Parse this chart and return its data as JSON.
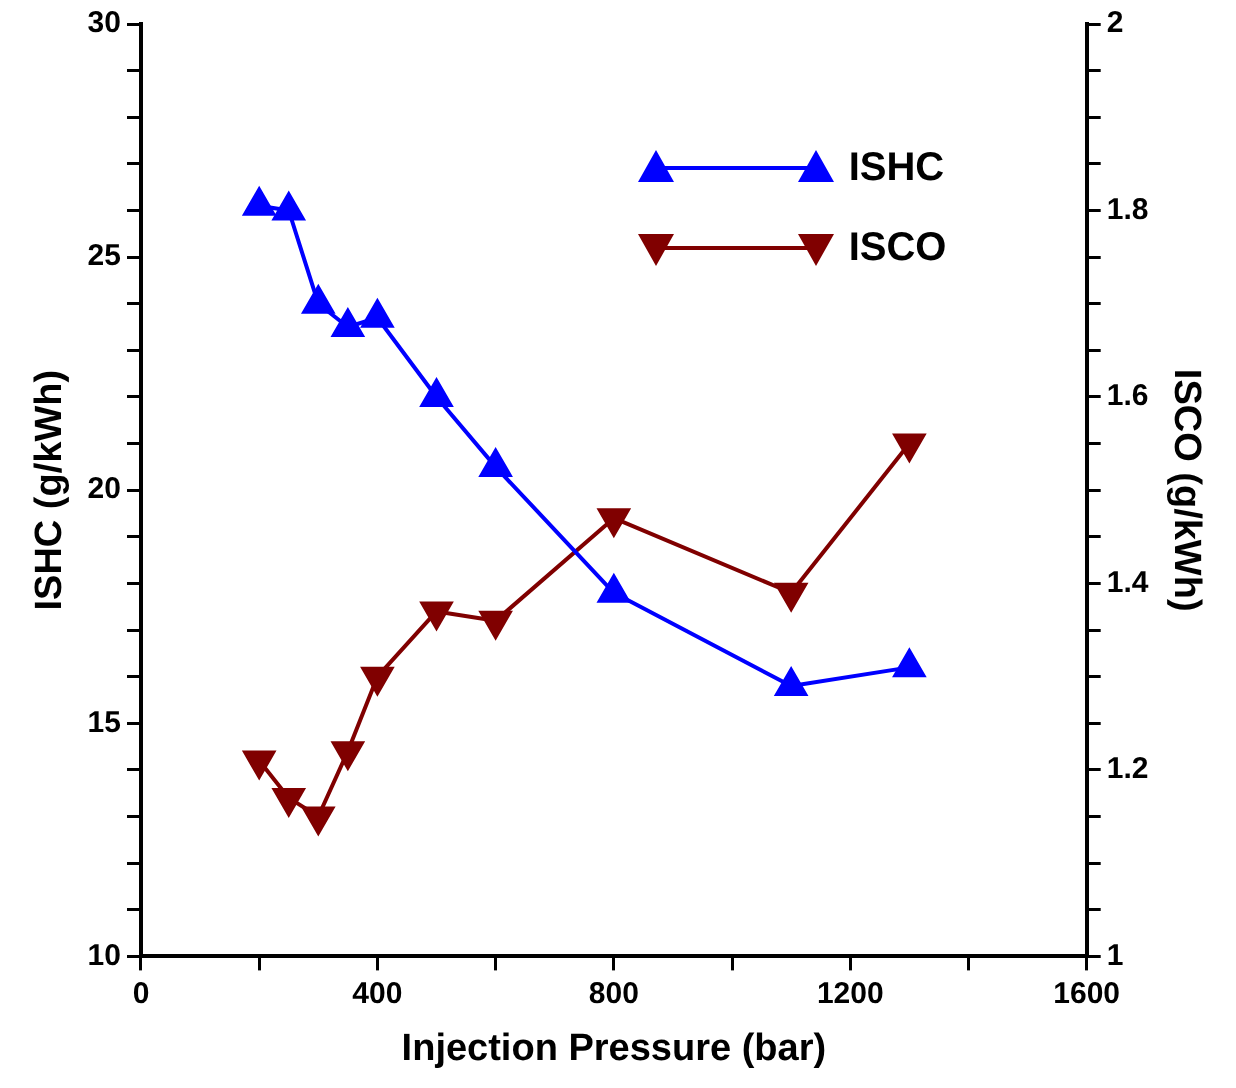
{
  "chart_data": {
    "type": "line",
    "xlabel": "Injection Pressure (bar)",
    "ylabel": "ISHC (g/kWh)",
    "y2label": "ISCO (g/kWh)",
    "x": [
      200,
      250,
      300,
      350,
      400,
      500,
      600,
      800,
      1100,
      1300
    ],
    "series": [
      {
        "name": "ISHC",
        "color": "#0000ff",
        "marker": "triangle",
        "values": [
          26.1,
          26.0,
          24.0,
          23.5,
          23.7,
          22.0,
          20.5,
          17.8,
          15.8,
          16.2
        ]
      },
      {
        "name": "ISCO",
        "color": "#800000",
        "marker": "triangle",
        "axis": "y2",
        "values": [
          1.21,
          1.17,
          1.15,
          1.22,
          1.3,
          1.37,
          1.36,
          1.47,
          1.39,
          1.55
        ]
      }
    ],
    "xlim": [
      0,
      1600
    ],
    "xticks": [
      0,
      {
        "value": 200,
        "label": null
      },
      400,
      {
        "value": 600,
        "label": null
      },
      800,
      {
        "value": 1000,
        "label": null
      },
      1200,
      {
        "value": 1400,
        "label": null
      },
      1600
    ],
    "ylim": [
      10,
      30
    ],
    "yticks": [
      10,
      {
        "value": 11,
        "label": null
      },
      {
        "value": 12,
        "label": null
      },
      {
        "value": 13,
        "label": null
      },
      {
        "value": 14,
        "label": null
      },
      15,
      {
        "value": 16,
        "label": null
      },
      {
        "value": 17,
        "label": null
      },
      {
        "value": 18,
        "label": null
      },
      {
        "value": 19,
        "label": null
      },
      20,
      {
        "value": 21,
        "label": null
      },
      {
        "value": 22,
        "label": null
      },
      {
        "value": 23,
        "label": null
      },
      {
        "value": 24,
        "label": null
      },
      25,
      {
        "value": 26,
        "label": null
      },
      {
        "value": 27,
        "label": null
      },
      {
        "value": 28,
        "label": null
      },
      {
        "value": 29,
        "label": null
      },
      30
    ],
    "y2lim": [
      1,
      2
    ],
    "y2ticks": [
      1,
      {
        "value": 1.05,
        "label": null
      },
      1.2,
      {
        "value": 1.1,
        "label": null
      },
      {
        "value": 1.15,
        "label": null
      },
      {
        "value": 1.25,
        "label": null
      },
      {
        "value": 1.3,
        "label": null
      },
      {
        "value": 1.35,
        "label": null
      },
      1.4,
      {
        "value": 1.45,
        "label": null
      },
      {
        "value": 1.5,
        "label": null
      },
      {
        "value": 1.55,
        "label": null
      },
      1.6,
      {
        "value": 1.65,
        "label": null
      },
      {
        "value": 1.7,
        "label": null
      },
      {
        "value": 1.75,
        "label": null
      },
      1.8,
      {
        "value": 1.85,
        "label": null
      },
      {
        "value": 1.9,
        "label": null
      },
      {
        "value": 1.95,
        "label": null
      },
      2
    ],
    "grid": false,
    "legend": "top right",
    "line_style": "solid"
  }
}
